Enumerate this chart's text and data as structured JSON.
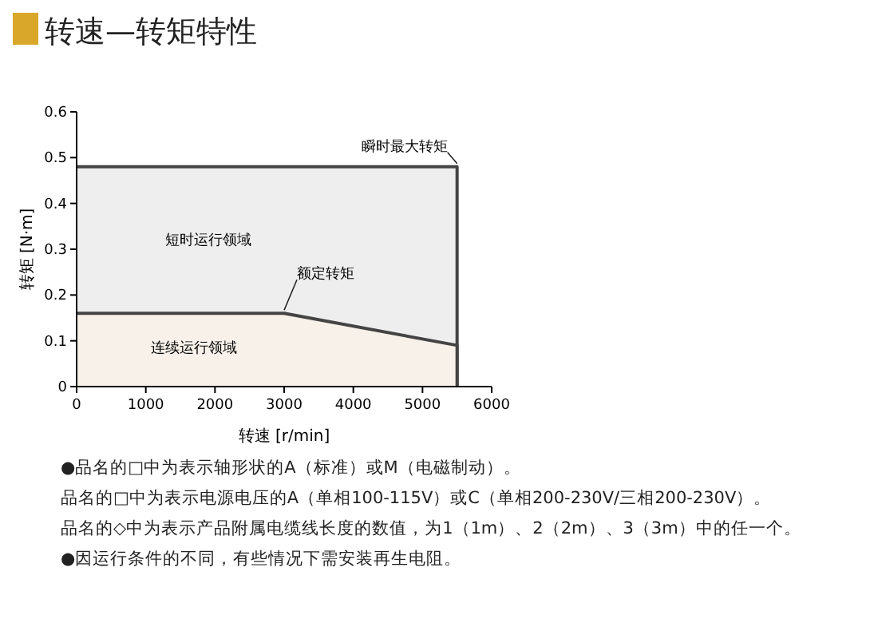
{
  "chart_data": {
    "type": "area",
    "title": "转速—转矩特性",
    "xlabel": "转速 [r/min]",
    "ylabel": "转矩 [N·m]",
    "series": [
      {
        "color": "#eeeeee",
        "x": [
          0,
          5500
        ],
        "values": [
          0.48,
          0.48
        ]
      },
      {
        "color": "#f8f1ea",
        "x": [
          0,
          3000,
          5500
        ],
        "values": [
          0.16,
          0.16,
          0.09
        ]
      }
    ],
    "xlim": [
      0,
      6000
    ],
    "xticks": [
      0,
      1000,
      2000,
      3000,
      4000,
      5000,
      6000
    ],
    "ylim": [
      0,
      0.6
    ],
    "yticks": [
      0,
      0.1,
      0.2,
      0.3,
      0.4,
      0.5,
      0.6
    ],
    "grid": false,
    "annotations": [
      {
        "text": "瞬时最大转矩",
        "x": 5500,
        "y": 0.48
      },
      {
        "text": "额定转矩",
        "x": 3000,
        "y": 0.16
      },
      "短时运行领域",
      "连续运行领域",
      "●品名的□中为表示轴形状的A（标准）或M（电磁制动）。",
      "品名的□中为表示电源电压的A（单相100-115V）或C（单相200-230V/三相200-230V）。",
      "品名的◇中为表示产品附属电缆线长度的数值，为1（1m）、2（2m）、3（3m）中的任一个。",
      "●因运行条件的不同，有些情况下需安装再生电阻。"
    ]
  }
}
